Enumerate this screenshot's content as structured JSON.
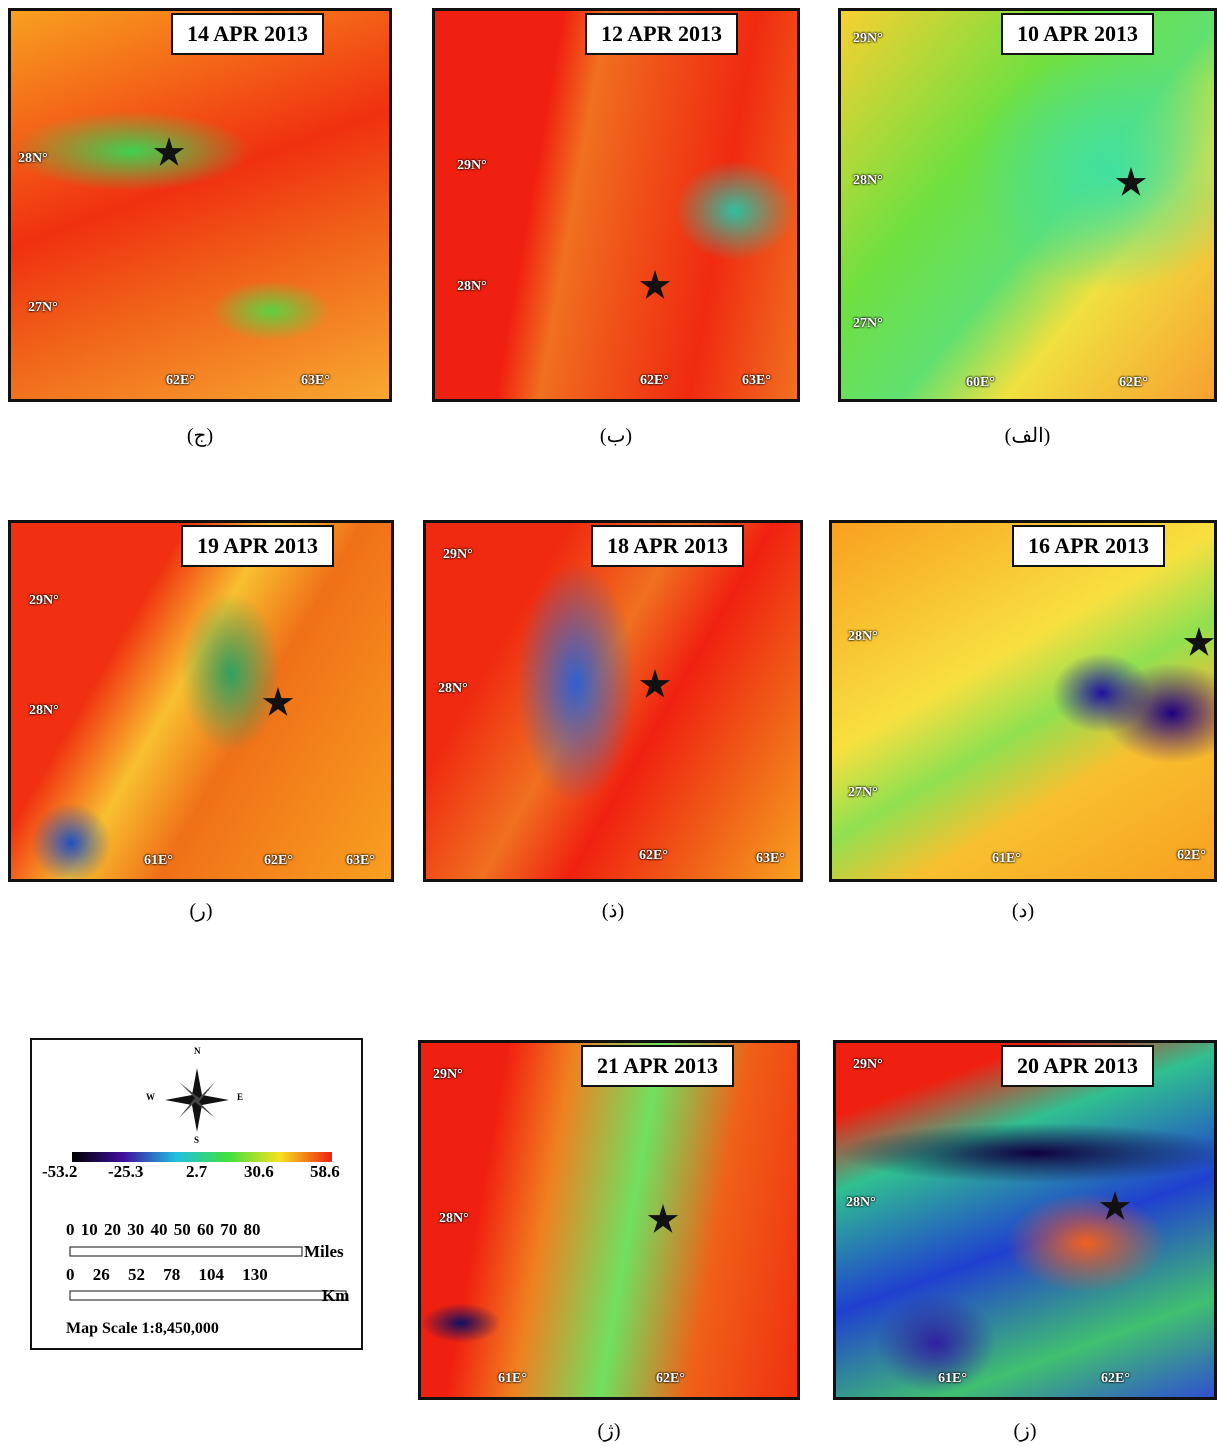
{
  "panels": [
    {
      "title": "14 APR 2013",
      "caption": "(ج)",
      "labels": [
        "28N°",
        "27N°",
        "62E°",
        "63E°"
      ]
    },
    {
      "title": "12 APR 2013",
      "caption": "(ب)",
      "labels": [
        "29N°",
        "28N°",
        "62E°",
        "63E°"
      ]
    },
    {
      "title": "10 APR 2013",
      "caption": "(الف)",
      "labels": [
        "29N°",
        "28N°",
        "27N°",
        "60E°",
        "62E°"
      ]
    },
    {
      "title": "19 APR 2013",
      "caption": "(ر)",
      "labels": [
        "29N°",
        "28N°",
        "61E°",
        "62E°",
        "63E°"
      ]
    },
    {
      "title": "18 APR 2013",
      "caption": "(ذ)",
      "labels": [
        "29N°",
        "28N°",
        "62E°",
        "63E°"
      ]
    },
    {
      "title": "16 APR 2013",
      "caption": "(د)",
      "labels": [
        "28N°",
        "27N°",
        "61E°",
        "62E°"
      ]
    },
    {
      "title": "21 APR 2013",
      "caption": "(ژ)",
      "labels": [
        "29N°",
        "28N°",
        "61E°",
        "62E°"
      ]
    },
    {
      "title": "20 APR 2013",
      "caption": "(ز)",
      "labels": [
        "29N°",
        "28N°",
        "61E°",
        "62E°"
      ]
    }
  ],
  "legend": {
    "compass": [
      "N",
      "E",
      "S",
      "W"
    ],
    "colorbar": [
      "-53.2",
      "-25.3",
      "2.7",
      "30.6",
      "58.6"
    ],
    "miles_ticks": "0 10 20 30 40 50 60 70 80",
    "miles_unit": "Miles",
    "km_ticks": "0 26 52 78 104 130",
    "km_unit": "Km",
    "map_scale": "Map Scale 1:8,450,000"
  }
}
